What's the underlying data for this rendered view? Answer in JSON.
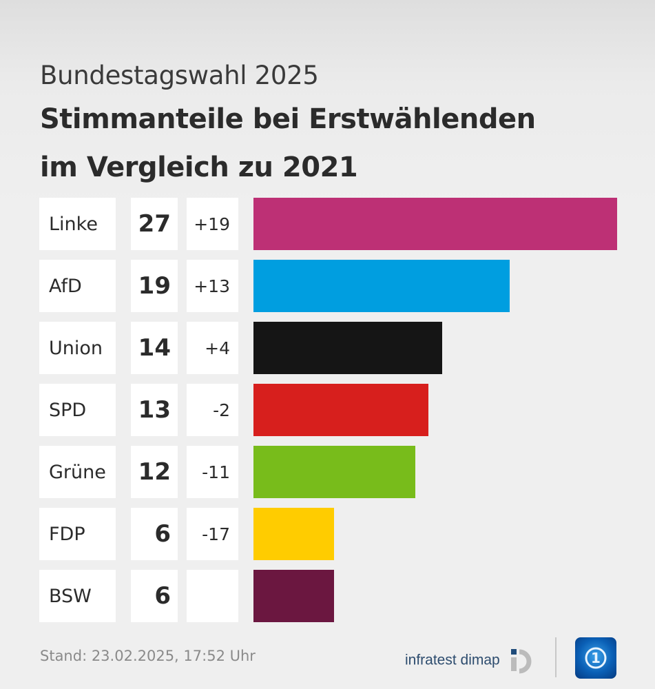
{
  "chart_data": {
    "type": "bar",
    "orientation": "horizontal",
    "supertitle": "Bundestagswahl 2025",
    "title": [
      "Stimmanteile bei Erstwählenden",
      "im Vergleich zu 2021"
    ],
    "categories": [
      "Linke",
      "AfD",
      "Union",
      "SPD",
      "Grüne",
      "FDP",
      "BSW"
    ],
    "values": [
      27,
      19,
      14,
      13,
      12,
      6,
      6
    ],
    "changes": [
      "+19",
      "+13",
      "+4",
      "-2",
      "-11",
      "-17",
      ""
    ],
    "colors": [
      "#bd3075",
      "#009ee0",
      "#151515",
      "#d71f1d",
      "#78bc1b",
      "#ffcc00",
      "#6b1740"
    ],
    "xlim": [
      0,
      27
    ],
    "grid": false
  },
  "footer": {
    "stand": "Stand:  23.02.2025, 17:52 Uhr",
    "source": "infratest dimap"
  }
}
